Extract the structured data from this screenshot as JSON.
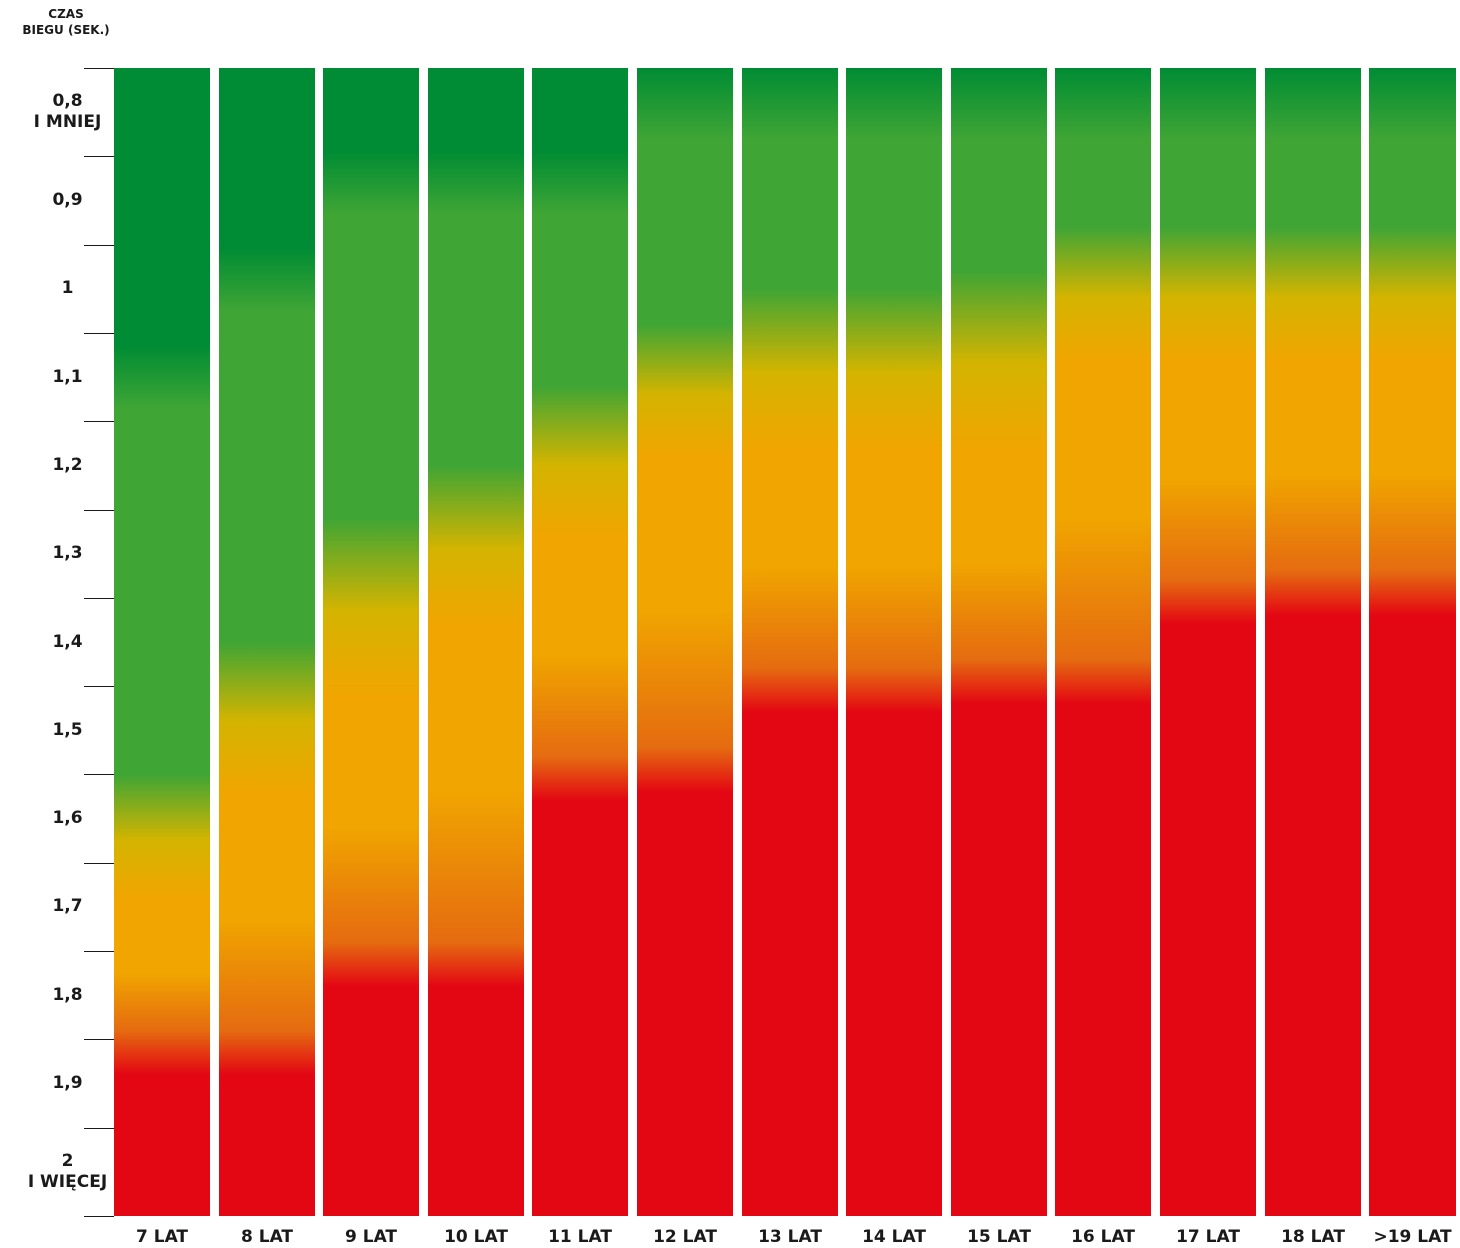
{
  "chart_data": {
    "type": "heatmap",
    "y_axis_title": [
      "CZAS",
      "BIEGU (SEK.)"
    ],
    "y_tick_labels": [
      [
        "0,8",
        "I MNIEJ"
      ],
      [
        "0,9"
      ],
      [
        "1"
      ],
      [
        "1,1"
      ],
      [
        "1,2"
      ],
      [
        "1,3"
      ],
      [
        "1,4"
      ],
      [
        "1,5"
      ],
      [
        "1,6"
      ],
      [
        "1,7"
      ],
      [
        "1,8"
      ],
      [
        "1,9"
      ],
      [
        "2",
        "I WIĘCEJ"
      ]
    ],
    "y_values": [
      0.8,
      0.9,
      1.0,
      1.1,
      1.2,
      1.3,
      1.4,
      1.5,
      1.6,
      1.7,
      1.8,
      1.9,
      2.0
    ],
    "ylim": [
      0.75,
      2.05
    ],
    "y_direction": "increasing-downward",
    "colors": {
      "dark_green": "#008c34",
      "green": "#3fa535",
      "yellow": "#d4b400",
      "orange": "#f0a500",
      "dark_orange": "#e56b10",
      "red": "#e30613"
    },
    "color_order": [
      "dark_green",
      "green",
      "yellow",
      "orange",
      "red"
    ],
    "columns": [
      {
        "label": "7 LAT",
        "thresholds_sec": {
          "dark_green_end": 1.1,
          "green_end": 1.59,
          "yellow_end": 1.66,
          "orange_end": 1.89
        }
      },
      {
        "label": "8 LAT",
        "thresholds_sec": {
          "dark_green_end": 0.99,
          "green_end": 1.44,
          "yellow_end": 1.54,
          "orange_end": 1.89
        }
      },
      {
        "label": "9 LAT",
        "thresholds_sec": {
          "dark_green_end": 0.88,
          "green_end": 1.3,
          "yellow_end": 1.43,
          "orange_end": 1.79
        }
      },
      {
        "label": "10 LAT",
        "thresholds_sec": {
          "dark_green_end": 0.88,
          "green_end": 1.24,
          "yellow_end": 1.35,
          "orange_end": 1.79
        }
      },
      {
        "label": "11 LAT",
        "thresholds_sec": {
          "dark_green_end": 0.88,
          "green_end": 1.15,
          "yellow_end": 1.25,
          "orange_end": 1.58
        }
      },
      {
        "label": "12 LAT",
        "thresholds_sec": {
          "dark_green_end": 0.8,
          "green_end": 1.08,
          "yellow_end": 1.16,
          "orange_end": 1.57
        }
      },
      {
        "label": "13 LAT",
        "thresholds_sec": {
          "dark_green_end": 0.8,
          "green_end": 1.04,
          "yellow_end": 1.15,
          "orange_end": 1.48
        }
      },
      {
        "label": "14 LAT",
        "thresholds_sec": {
          "dark_green_end": 0.8,
          "green_end": 1.04,
          "yellow_end": 1.15,
          "orange_end": 1.48
        }
      },
      {
        "label": "15 LAT",
        "thresholds_sec": {
          "dark_green_end": 0.8,
          "green_end": 1.02,
          "yellow_end": 1.15,
          "orange_end": 1.47
        }
      },
      {
        "label": "16 LAT",
        "thresholds_sec": {
          "dark_green_end": 0.8,
          "green_end": 0.97,
          "yellow_end": 1.05,
          "orange_end": 1.47
        }
      },
      {
        "label": "17 LAT",
        "thresholds_sec": {
          "dark_green_end": 0.8,
          "green_end": 0.97,
          "yellow_end": 1.05,
          "orange_end": 1.38
        }
      },
      {
        "label": "18 LAT",
        "thresholds_sec": {
          "dark_green_end": 0.8,
          "green_end": 0.97,
          "yellow_end": 1.05,
          "orange_end": 1.37
        }
      },
      {
        "label": ">19 LAT",
        "thresholds_sec": {
          "dark_green_end": 0.8,
          "green_end": 0.97,
          "yellow_end": 1.05,
          "orange_end": 1.37
        }
      }
    ]
  }
}
